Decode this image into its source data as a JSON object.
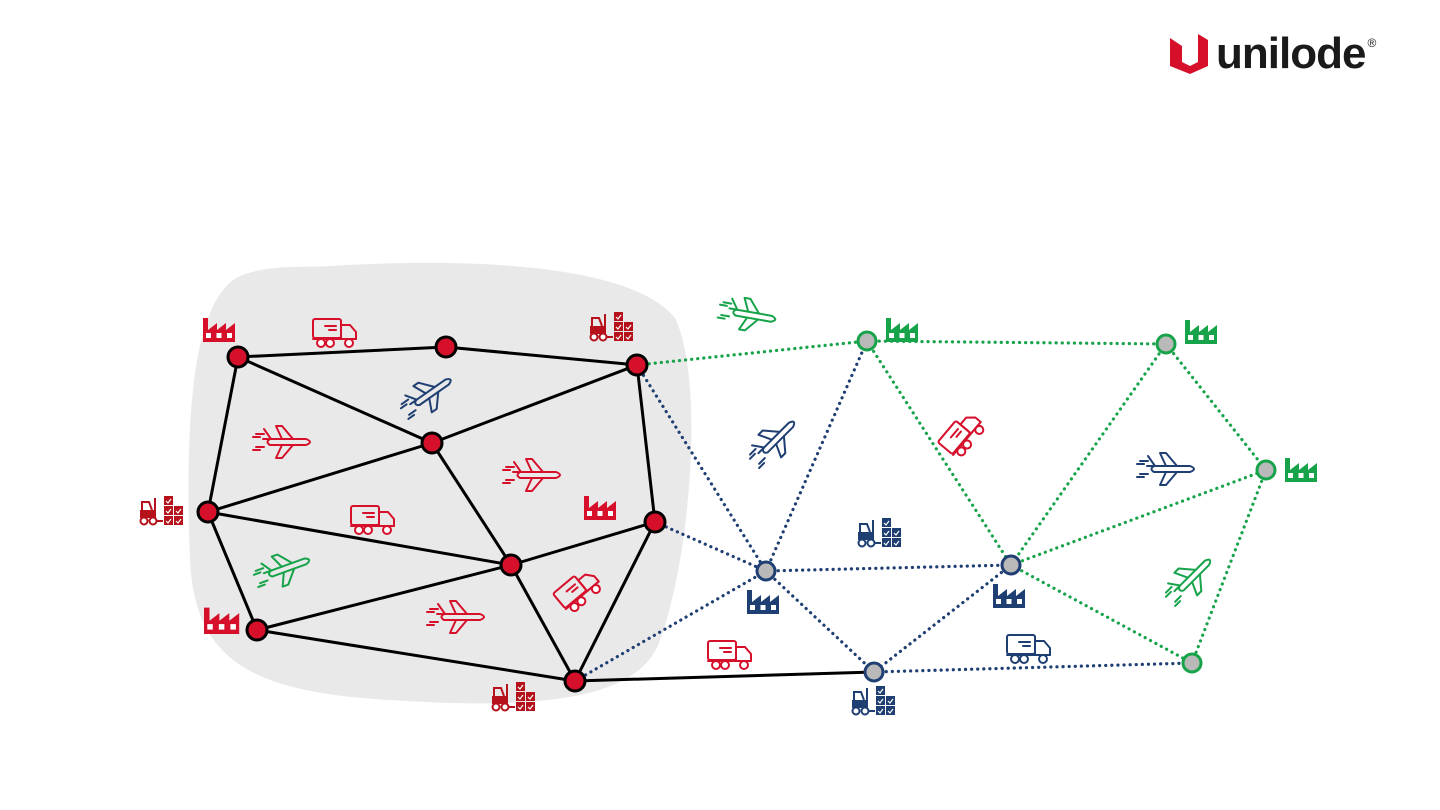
{
  "brand": {
    "name": "unilode",
    "registered_mark": "®",
    "logo_icon": "unilode-logo-icon",
    "colors": {
      "mark": "#d6102b",
      "text": "#1a1a1a"
    }
  },
  "colors": {
    "red": "#d6102b",
    "dark_red": "#b5121b",
    "navy": "#1f3f73",
    "green": "#17a34a",
    "node_gray": "#b9b9b9",
    "zone_gray": "#e9e9e9",
    "edge_black": "#000000"
  },
  "network": {
    "nodes": [
      {
        "id": "r1",
        "group": "core"
      },
      {
        "id": "r2",
        "group": "core"
      },
      {
        "id": "r3",
        "group": "core"
      },
      {
        "id": "r4",
        "group": "core"
      },
      {
        "id": "r5",
        "group": "core"
      },
      {
        "id": "r6",
        "group": "core"
      },
      {
        "id": "r7",
        "group": "core"
      },
      {
        "id": "r8",
        "group": "core"
      },
      {
        "id": "r9",
        "group": "core"
      },
      {
        "id": "g1",
        "group": "partner",
        "ring": "green"
      },
      {
        "id": "g2",
        "group": "partner",
        "ring": "green"
      },
      {
        "id": "g3",
        "group": "partner",
        "ring": "green"
      },
      {
        "id": "g4",
        "group": "partner",
        "ring": "green"
      },
      {
        "id": "n1",
        "group": "partner",
        "ring": "navy"
      },
      {
        "id": "n2",
        "group": "partner",
        "ring": "navy"
      },
      {
        "id": "n3",
        "group": "partner",
        "ring": "navy"
      }
    ],
    "edges": [
      {
        "from": "r1",
        "to": "r2",
        "style": "solid"
      },
      {
        "from": "r2",
        "to": "r3",
        "style": "solid"
      },
      {
        "from": "r1",
        "to": "r4",
        "style": "solid"
      },
      {
        "from": "r4",
        "to": "r3",
        "style": "solid"
      },
      {
        "from": "r1",
        "to": "r5",
        "style": "solid"
      },
      {
        "from": "r4",
        "to": "r5",
        "style": "solid"
      },
      {
        "from": "r3",
        "to": "r6",
        "style": "solid"
      },
      {
        "from": "r4",
        "to": "r7",
        "style": "solid"
      },
      {
        "from": "r5",
        "to": "r7",
        "style": "solid"
      },
      {
        "from": "r7",
        "to": "r6",
        "style": "solid"
      },
      {
        "from": "r5",
        "to": "r8",
        "style": "solid"
      },
      {
        "from": "r8",
        "to": "r7",
        "style": "solid"
      },
      {
        "from": "r8",
        "to": "r9",
        "style": "solid"
      },
      {
        "from": "r7",
        "to": "r9",
        "style": "solid"
      },
      {
        "from": "r6",
        "to": "r9",
        "style": "solid"
      },
      {
        "from": "r9",
        "to": "n3",
        "style": "solid"
      },
      {
        "from": "r3",
        "to": "g1",
        "style": "dotted-green"
      },
      {
        "from": "g1",
        "to": "g2",
        "style": "dotted-green"
      },
      {
        "from": "g1",
        "to": "n2",
        "style": "dotted-green"
      },
      {
        "from": "g2",
        "to": "n2",
        "style": "dotted-green"
      },
      {
        "from": "g2",
        "to": "g3",
        "style": "dotted-green"
      },
      {
        "from": "n2",
        "to": "g3",
        "style": "dotted-green"
      },
      {
        "from": "n2",
        "to": "g4",
        "style": "dotted-green"
      },
      {
        "from": "g3",
        "to": "g4",
        "style": "dotted-green"
      },
      {
        "from": "r3",
        "to": "n1",
        "style": "dotted-navy"
      },
      {
        "from": "r6",
        "to": "n1",
        "style": "dotted-navy"
      },
      {
        "from": "r9",
        "to": "n1",
        "style": "dotted-navy"
      },
      {
        "from": "n1",
        "to": "g1",
        "style": "dotted-navy"
      },
      {
        "from": "n1",
        "to": "n2",
        "style": "dotted-navy"
      },
      {
        "from": "n1",
        "to": "n3",
        "style": "dotted-navy"
      },
      {
        "from": "n2",
        "to": "n3",
        "style": "dotted-navy"
      },
      {
        "from": "n3",
        "to": "g4",
        "style": "dotted-navy"
      }
    ]
  },
  "icons": [
    {
      "id": "factory-r1",
      "type": "factory-icon",
      "color": "red"
    },
    {
      "id": "truck-r1r2",
      "type": "truck-icon",
      "color": "red"
    },
    {
      "id": "forklift-r3",
      "type": "forklift-icon",
      "color": "dark_red"
    },
    {
      "id": "plane-navy-top",
      "type": "airplane-icon",
      "color": "navy"
    },
    {
      "id": "plane-red-1",
      "type": "airplane-icon",
      "color": "red"
    },
    {
      "id": "plane-red-2",
      "type": "airplane-icon",
      "color": "red"
    },
    {
      "id": "forklift-r5",
      "type": "forklift-icon",
      "color": "dark_red"
    },
    {
      "id": "truck-red-mid",
      "type": "truck-icon",
      "color": "red"
    },
    {
      "id": "factory-r6",
      "type": "factory-icon",
      "color": "red"
    },
    {
      "id": "plane-green-core",
      "type": "airplane-icon",
      "color": "green"
    },
    {
      "id": "factory-r8",
      "type": "factory-icon",
      "color": "red"
    },
    {
      "id": "truck-red-tilted",
      "type": "truck-icon",
      "color": "red"
    },
    {
      "id": "plane-red-3",
      "type": "airplane-icon",
      "color": "red"
    },
    {
      "id": "forklift-r9",
      "type": "forklift-icon",
      "color": "dark_red"
    },
    {
      "id": "plane-green-top",
      "type": "airplane-icon",
      "color": "green"
    },
    {
      "id": "factory-g1",
      "type": "factory-icon",
      "color": "green"
    },
    {
      "id": "factory-g2",
      "type": "factory-icon",
      "color": "green"
    },
    {
      "id": "factory-g3",
      "type": "factory-icon",
      "color": "green"
    },
    {
      "id": "plane-navy-left",
      "type": "airplane-icon",
      "color": "navy"
    },
    {
      "id": "truck-red-tilted-2",
      "type": "truck-icon",
      "color": "red"
    },
    {
      "id": "plane-navy-right",
      "type": "airplane-icon",
      "color": "navy"
    },
    {
      "id": "forklift-navy-mid",
      "type": "forklift-icon",
      "color": "navy"
    },
    {
      "id": "factory-n1",
      "type": "factory-icon",
      "color": "navy"
    },
    {
      "id": "factory-n2",
      "type": "factory-icon",
      "color": "navy"
    },
    {
      "id": "plane-green-right",
      "type": "airplane-icon",
      "color": "green"
    },
    {
      "id": "truck-red-bottom",
      "type": "truck-icon",
      "color": "red"
    },
    {
      "id": "truck-navy-bottom",
      "type": "truck-icon",
      "color": "navy"
    },
    {
      "id": "forklift-n3",
      "type": "forklift-icon",
      "color": "navy"
    }
  ]
}
